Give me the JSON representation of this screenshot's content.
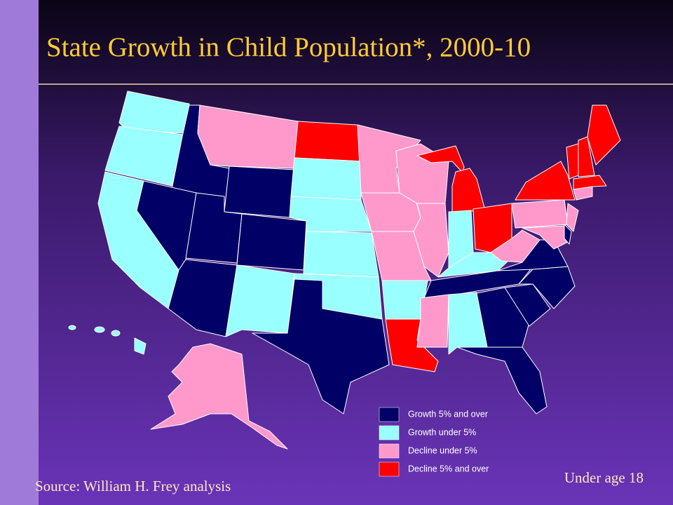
{
  "header": {
    "title": "State Growth in Child Population*, 2000-10"
  },
  "legend": {
    "items": [
      {
        "label": "Growth 5% and over",
        "color": "#000066"
      },
      {
        "label": "Growth under 5%",
        "color": "#99ffff"
      },
      {
        "label": "Decline under 5%",
        "color": "#ff99cc"
      },
      {
        "label": "Decline 5% and over",
        "color": "#ff0000"
      }
    ]
  },
  "footer": {
    "source": "Source: William H. Frey analysis",
    "note": "Under age 18"
  }
}
